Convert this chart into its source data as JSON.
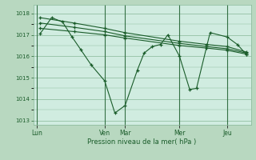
{
  "background_color": "#b8d8c0",
  "plot_bg_color": "#d0ece0",
  "grid_color": "#88b898",
  "line_color": "#1a5c2a",
  "title": "Pression niveau de la mer( hPa )",
  "ylim": [
    1012.8,
    1018.4
  ],
  "yticks": [
    1013,
    1014,
    1015,
    1016,
    1017,
    1018
  ],
  "day_labels": [
    "Lun",
    "Ven",
    "Mar",
    "Mer",
    "Jeu"
  ],
  "day_x": [
    0,
    100,
    130,
    210,
    280
  ],
  "vline_x": [
    0,
    100,
    130,
    210,
    280
  ],
  "series1_x": [
    5,
    22,
    38,
    52,
    65,
    80,
    100,
    115,
    130,
    148,
    158,
    170,
    182,
    193,
    210,
    225,
    235,
    255,
    280,
    295,
    308
  ],
  "series1_y": [
    1017.05,
    1017.8,
    1017.6,
    1016.9,
    1016.3,
    1015.6,
    1014.85,
    1013.35,
    1013.7,
    1015.35,
    1016.15,
    1016.45,
    1016.55,
    1017.0,
    1016.0,
    1014.45,
    1014.5,
    1017.1,
    1016.9,
    1016.55,
    1016.1
  ],
  "series2_x": [
    5,
    55,
    100,
    130,
    210,
    250,
    280,
    308
  ],
  "series2_y": [
    1017.8,
    1017.55,
    1017.3,
    1017.1,
    1016.7,
    1016.55,
    1016.45,
    1016.2
  ],
  "series3_x": [
    5,
    55,
    100,
    130,
    210,
    250,
    280,
    308
  ],
  "series3_y": [
    1017.55,
    1017.35,
    1017.15,
    1016.95,
    1016.6,
    1016.45,
    1016.35,
    1016.15
  ],
  "series4_x": [
    5,
    55,
    100,
    130,
    210,
    250,
    280,
    308
  ],
  "series4_y": [
    1017.3,
    1017.15,
    1017.0,
    1016.85,
    1016.5,
    1016.38,
    1016.28,
    1016.1
  ],
  "xlim": [
    -5,
    315
  ]
}
